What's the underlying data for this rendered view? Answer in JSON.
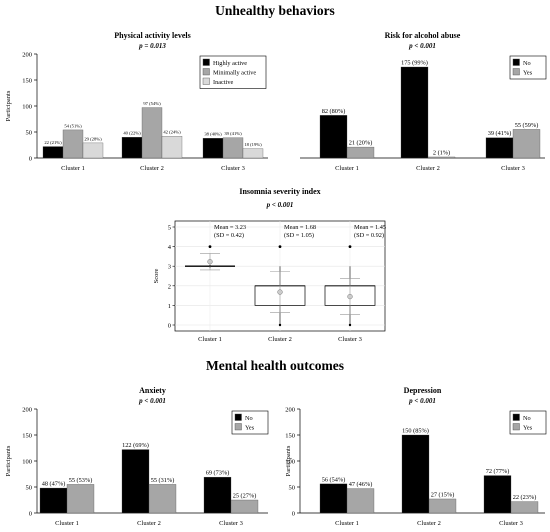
{
  "sections": {
    "unhealthy_title": "Unhealthy behaviors",
    "mental_title": "Mental health outcomes"
  },
  "chart_data": [
    {
      "id": "physical",
      "type": "bar",
      "title": "Physical activity levels",
      "subtitle": "p = 0.013",
      "ylabel": "Participants",
      "ylim": [
        0,
        200
      ],
      "yticks": [
        0,
        50,
        100,
        150,
        200
      ],
      "categories": [
        "Cluster 1",
        "Cluster 2",
        "Cluster 3"
      ],
      "legend_position": "top-right",
      "series": [
        {
          "name": "Highly active",
          "color": "#000000",
          "values": [
            22,
            40,
            38
          ],
          "labels": [
            "22 (21%)",
            "40 (22%)",
            "38 (40%)"
          ]
        },
        {
          "name": "Minimally active",
          "color": "#a6a6a6",
          "values": [
            54,
            97,
            39
          ],
          "labels": [
            "54 (51%)",
            "97 (54%)",
            "39 (41%)"
          ]
        },
        {
          "name": "Inactive",
          "color": "#d9d9d9",
          "values": [
            29,
            42,
            18
          ],
          "labels": [
            "29 (28%)",
            "42 (24%)",
            "18 (19%)"
          ]
        }
      ]
    },
    {
      "id": "alcohol",
      "type": "bar",
      "title": "Risk for alcohol abuse",
      "subtitle": "p < 0.001",
      "ylim": [
        0,
        200
      ],
      "categories": [
        "Cluster 1",
        "Cluster 2",
        "Cluster 3"
      ],
      "legend_position": "top-right",
      "series": [
        {
          "name": "No",
          "color": "#000000",
          "values": [
            82,
            175,
            39
          ],
          "labels": [
            "82 (80%)",
            "175 (99%)",
            "39 (41%)"
          ]
        },
        {
          "name": "Yes",
          "color": "#a6a6a6",
          "values": [
            21,
            2,
            55
          ],
          "labels": [
            "21 (20%)",
            "2 (1%)",
            "55 (59%)"
          ]
        }
      ]
    },
    {
      "id": "insomnia",
      "type": "boxplot",
      "title": "Insomnia severity index",
      "subtitle": "p < 0.001",
      "ylabel": "Score",
      "ylim": [
        0,
        5
      ],
      "yticks": [
        0,
        1,
        2,
        3,
        4,
        5
      ],
      "categories": [
        "Cluster 1",
        "Cluster 2",
        "Cluster 3"
      ],
      "boxes": [
        {
          "q1": 3,
          "median": 3,
          "q3": 3,
          "whisker_low": 3,
          "whisker_high": 3,
          "mean": 3.23,
          "sd": 0.42,
          "outliers": [
            4
          ],
          "mean_label": "Mean = 3.23",
          "sd_label": "(SD = 0.42)"
        },
        {
          "q1": 1,
          "median": 2,
          "q3": 2,
          "whisker_low": 0,
          "whisker_high": 3,
          "mean": 1.68,
          "sd": 1.05,
          "outliers": [
            4
          ],
          "mean_label": "Mean = 1.68",
          "sd_label": "(SD = 1.05)"
        },
        {
          "q1": 1,
          "median": 2,
          "q3": 2,
          "whisker_low": 0,
          "whisker_high": 3,
          "mean": 1.45,
          "sd": 0.92,
          "outliers": [
            4
          ],
          "mean_label": "Mean = 1.45",
          "sd_label": "(SD = 0.92)"
        }
      ]
    },
    {
      "id": "anxiety",
      "type": "bar",
      "title": "Anxiety",
      "subtitle": "p < 0.001",
      "ylabel": "Participants",
      "ylim": [
        0,
        200
      ],
      "yticks": [
        0,
        50,
        100,
        150,
        200
      ],
      "categories": [
        "Cluster 1",
        "Cluster 2",
        "Cluster 3"
      ],
      "legend_position": "top-right",
      "series": [
        {
          "name": "No",
          "color": "#000000",
          "values": [
            48,
            122,
            69
          ],
          "labels": [
            "48 (47%)",
            "122 (69%)",
            "69 (73%)"
          ]
        },
        {
          "name": "Yes",
          "color": "#a6a6a6",
          "values": [
            55,
            55,
            25
          ],
          "labels": [
            "55 (53%)",
            "55 (31%)",
            "25 (27%)"
          ]
        }
      ]
    },
    {
      "id": "depression",
      "type": "bar",
      "title": "Depression",
      "subtitle": "p < 0.001",
      "ylabel": "Participants",
      "ylim": [
        0,
        200
      ],
      "yticks": [
        0,
        50,
        100,
        150,
        200
      ],
      "categories": [
        "Cluster 1",
        "Cluster 2",
        "Cluster 3"
      ],
      "legend_position": "top-right",
      "series": [
        {
          "name": "No",
          "color": "#000000",
          "values": [
            56,
            150,
            72
          ],
          "labels": [
            "56 (54%)",
            "150 (85%)",
            "72 (77%)"
          ]
        },
        {
          "name": "Yes",
          "color": "#a6a6a6",
          "values": [
            47,
            27,
            22
          ],
          "labels": [
            "47 (46%)",
            "27 (15%)",
            "22 (23%)"
          ]
        }
      ]
    }
  ]
}
